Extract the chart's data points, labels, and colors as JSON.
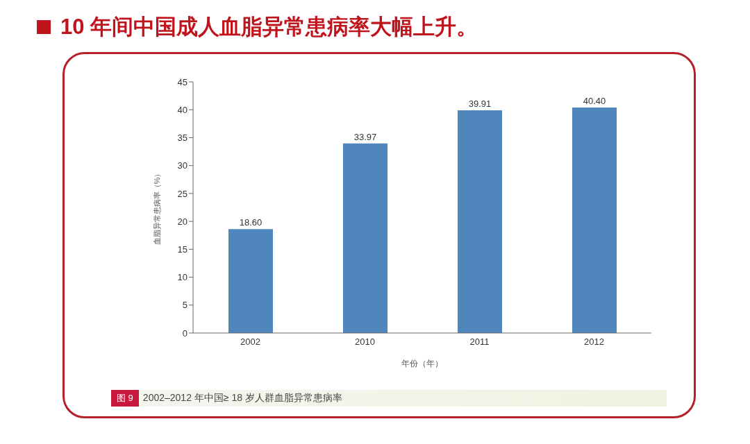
{
  "chart_data": {
    "type": "bar",
    "title": "10 年间中国成人血脂异常患病率大幅上升。",
    "categories": [
      "2002",
      "2010",
      "2011",
      "2012"
    ],
    "values": [
      18.6,
      33.97,
      39.91,
      40.4
    ],
    "value_labels": [
      "18.60",
      "33.97",
      "39.91",
      "40.40"
    ],
    "color": "#4f86bb",
    "xlabel": "年份（年）",
    "ylabel": "血脂异常患病率（%）",
    "ylim": [
      0,
      45
    ],
    "yticks": [
      0,
      5,
      10,
      15,
      20,
      25,
      30,
      35,
      40,
      45
    ],
    "grid": false,
    "legend": false,
    "annotations": [
      "图 9",
      "2002–2012 年中国≥ 18 岁人群血脂异常患病率"
    ]
  }
}
